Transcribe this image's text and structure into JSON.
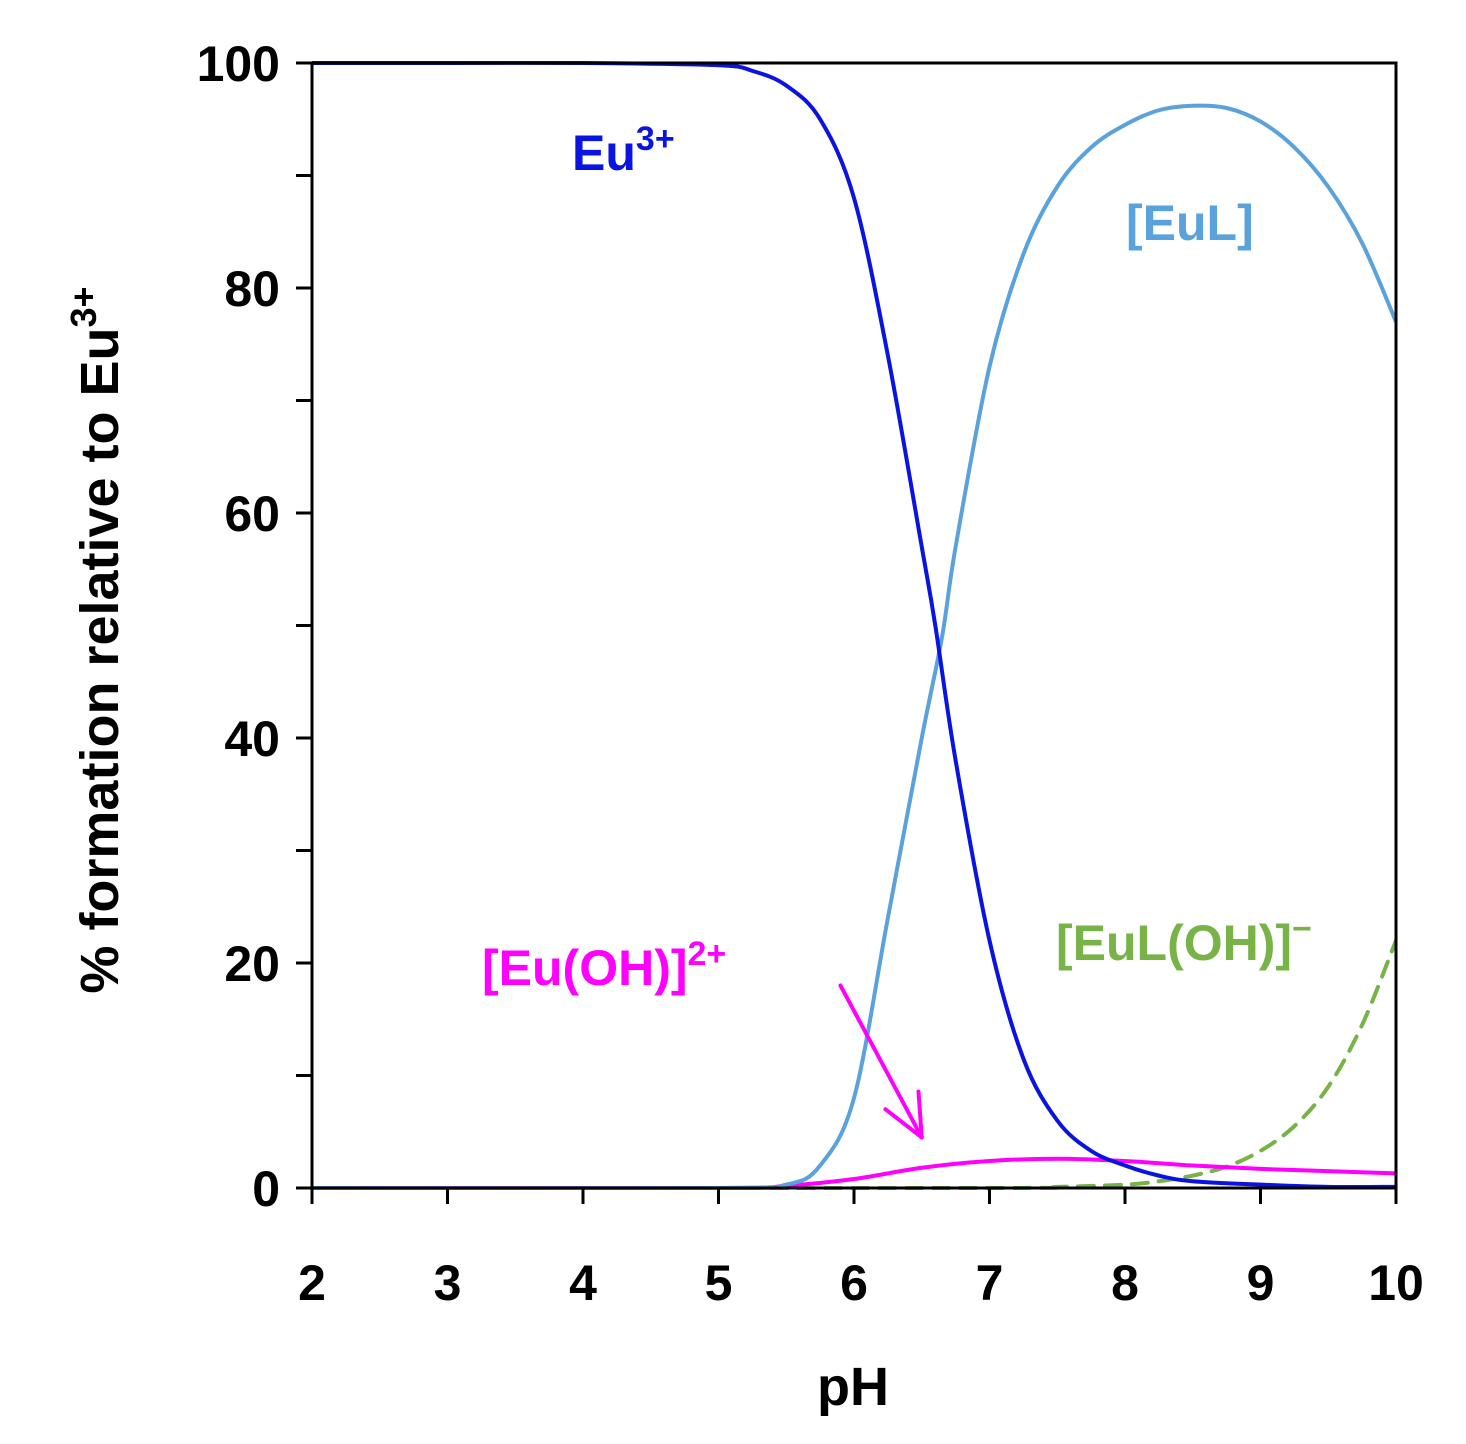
{
  "chart_data": {
    "type": "line",
    "xlabel": "pH",
    "ylabel": "% formation relative to Eu",
    "ylabel_sup": "3+",
    "xlim": [
      2,
      10
    ],
    "ylim": [
      0,
      100
    ],
    "x_ticks": [
      2,
      3,
      4,
      5,
      6,
      7,
      8,
      9,
      10
    ],
    "y_ticks_labeled": [
      0,
      20,
      40,
      60,
      80,
      100
    ],
    "y_ticks_minor": [
      10,
      30,
      50,
      70,
      90
    ],
    "grid": false,
    "legend": "inline-labels",
    "series": [
      {
        "label_base": "Eu",
        "label_sup": "3+",
        "color": "#0a14e0",
        "style": "solid",
        "x": [
          2,
          3,
          4,
          5,
          5.25,
          5.5,
          5.75,
          6,
          6.25,
          6.5,
          6.6,
          6.75,
          7,
          7.25,
          7.5,
          7.75,
          8,
          8.25,
          8.5,
          9,
          9.5,
          10
        ],
        "y": [
          100,
          100,
          100,
          99.8,
          99.3,
          98,
          95,
          88,
          74,
          57,
          50,
          38,
          22,
          11.5,
          6,
          3.3,
          2,
          1.1,
          0.6,
          0.3,
          0.1,
          0.1
        ]
      },
      {
        "label_base": "[EuL]",
        "label_sup": "",
        "color": "#5aa2dc",
        "style": "solid",
        "x": [
          2,
          5,
          5.5,
          5.75,
          6,
          6.25,
          6.5,
          6.65,
          6.75,
          7,
          7.25,
          7.5,
          7.75,
          8,
          8.25,
          8.5,
          8.75,
          9,
          9.25,
          9.5,
          9.75,
          10
        ],
        "y": [
          0,
          0,
          0.3,
          2,
          8,
          24,
          40,
          49,
          57,
          73,
          83,
          89,
          92.5,
          94.5,
          95.8,
          96.2,
          96,
          94.8,
          92.5,
          89,
          84,
          77
        ]
      },
      {
        "label_base": "[Eu(OH)]",
        "label_sup": "2+",
        "color": "#ff00ff",
        "style": "solid",
        "x": [
          2,
          5,
          5.5,
          6,
          6.5,
          7,
          7.5,
          8,
          8.5,
          9,
          9.5,
          10
        ],
        "y": [
          0,
          0,
          0.2,
          0.8,
          1.8,
          2.4,
          2.6,
          2.4,
          2.0,
          1.7,
          1.5,
          1.3
        ]
      },
      {
        "label_base": "[EuL(OH)]",
        "label_sup": "−",
        "color": "#77b347",
        "style": "dashed",
        "x": [
          2,
          7,
          7.5,
          8,
          8.25,
          8.5,
          8.75,
          9,
          9.25,
          9.5,
          9.75,
          10
        ],
        "y": [
          0,
          0,
          0.1,
          0.3,
          0.6,
          1.1,
          1.9,
          3.3,
          5.5,
          9,
          14.5,
          22
        ]
      },
      {
        "label_base": "",
        "label_sup": "",
        "color": "#000000",
        "style": "dashed",
        "x": [
          2,
          10
        ],
        "y": [
          0,
          0
        ]
      }
    ],
    "annotations": [
      {
        "text": "[Eu(OH)]",
        "target_x": 6.5,
        "target_y": 4.5,
        "from_x": 5.9,
        "from_y": 18
      }
    ]
  }
}
